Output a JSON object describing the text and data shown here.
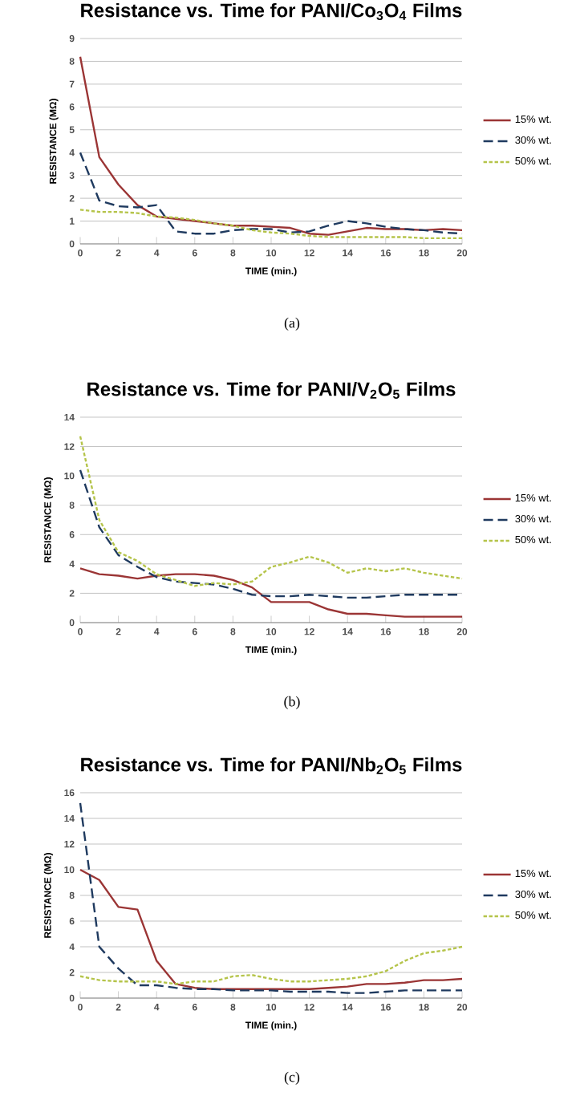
{
  "chart_data": [
    {
      "type": "line",
      "title": "Resistance vs. Time for PANI/Co$_{3}$O$_{4}$ Films",
      "xlabel": "TIME (min.)",
      "ylabel": "RESISTANCE (MΩ)",
      "x": [
        0,
        1,
        2,
        3,
        4,
        5,
        6,
        7,
        8,
        9,
        10,
        11,
        12,
        13,
        14,
        15,
        16,
        17,
        18,
        19,
        20
      ],
      "xlim": [
        0,
        20
      ],
      "xticks": [
        0,
        2,
        4,
        6,
        8,
        10,
        12,
        14,
        16,
        18,
        20
      ],
      "ylim": [
        0,
        9
      ],
      "yticks": [
        0,
        1,
        2,
        3,
        4,
        5,
        6,
        7,
        8,
        9
      ],
      "grid": "y",
      "legend": "right",
      "annotations": [
        "(a)"
      ],
      "series": [
        {
          "name": "15% wt.",
          "color": "#9b3535",
          "line_style": "solid",
          "values": [
            8.2,
            3.8,
            2.6,
            1.7,
            1.2,
            1.1,
            1.0,
            0.9,
            0.8,
            0.8,
            0.75,
            0.7,
            0.45,
            0.4,
            0.55,
            0.7,
            0.65,
            0.65,
            0.6,
            0.65,
            0.6
          ]
        },
        {
          "name": "30% wt.",
          "color": "#1f3a5f",
          "line_style": "dashed",
          "values": [
            4.0,
            1.9,
            1.65,
            1.6,
            1.7,
            0.55,
            0.45,
            0.45,
            0.6,
            0.65,
            0.65,
            0.5,
            0.55,
            0.8,
            1.0,
            0.9,
            0.75,
            0.65,
            0.6,
            0.5,
            0.45
          ]
        },
        {
          "name": "50% wt.",
          "color": "#b5c44a",
          "line_style": "dotted",
          "values": [
            1.5,
            1.4,
            1.4,
            1.35,
            1.2,
            1.15,
            1.05,
            0.9,
            0.8,
            0.6,
            0.5,
            0.45,
            0.35,
            0.3,
            0.3,
            0.3,
            0.3,
            0.3,
            0.25,
            0.25,
            0.25
          ]
        }
      ]
    },
    {
      "type": "line",
      "title": "Resistance vs. Time for PANI/V$_{2}$O$_{5}$ Films",
      "xlabel": "TIME (min.)",
      "ylabel": "RESISTANCE (MΩ)",
      "x": [
        0,
        1,
        2,
        3,
        4,
        5,
        6,
        7,
        8,
        9,
        10,
        11,
        12,
        13,
        14,
        15,
        16,
        17,
        18,
        19,
        20
      ],
      "xlim": [
        0,
        20
      ],
      "xticks": [
        0,
        2,
        4,
        6,
        8,
        10,
        12,
        14,
        16,
        18,
        20
      ],
      "ylim": [
        0,
        14
      ],
      "yticks": [
        0,
        2,
        4,
        6,
        8,
        10,
        12,
        14
      ],
      "grid": "y",
      "legend": "right",
      "annotations": [
        "(b)"
      ],
      "series": [
        {
          "name": "15% wt.",
          "color": "#9b3535",
          "line_style": "solid",
          "values": [
            3.7,
            3.3,
            3.2,
            3.0,
            3.2,
            3.3,
            3.3,
            3.2,
            2.9,
            2.4,
            1.4,
            1.4,
            1.4,
            0.9,
            0.6,
            0.6,
            0.5,
            0.4,
            0.4,
            0.4,
            0.4
          ]
        },
        {
          "name": "30% wt.",
          "color": "#1f3a5f",
          "line_style": "dashed",
          "values": [
            10.4,
            6.5,
            4.6,
            3.8,
            3.1,
            2.8,
            2.7,
            2.6,
            2.3,
            1.9,
            1.8,
            1.8,
            1.9,
            1.8,
            1.7,
            1.7,
            1.8,
            1.9,
            1.9,
            1.9,
            1.9
          ]
        },
        {
          "name": "50% wt.",
          "color": "#b5c44a",
          "line_style": "dotted",
          "values": [
            12.7,
            7.0,
            4.8,
            4.2,
            3.3,
            2.9,
            2.5,
            2.7,
            2.6,
            2.8,
            3.8,
            4.1,
            4.5,
            4.1,
            3.4,
            3.7,
            3.5,
            3.7,
            3.4,
            3.2,
            3.0
          ]
        }
      ]
    },
    {
      "type": "line",
      "title": "Resistance vs. Time for PANI/Nb$_{2}$O$_{5}$ Films",
      "xlabel": "TIME (min.)",
      "ylabel": "RESISTANCE (MΩ)",
      "x": [
        0,
        1,
        2,
        3,
        4,
        5,
        6,
        7,
        8,
        9,
        10,
        11,
        12,
        13,
        14,
        15,
        16,
        17,
        18,
        19,
        20
      ],
      "xlim": [
        0,
        20
      ],
      "xticks": [
        0,
        2,
        4,
        6,
        8,
        10,
        12,
        14,
        16,
        18,
        20
      ],
      "ylim": [
        0,
        16
      ],
      "yticks": [
        0,
        2,
        4,
        6,
        8,
        10,
        12,
        14,
        16
      ],
      "grid": "y",
      "legend": "right",
      "annotations": [
        "(c)"
      ],
      "series": [
        {
          "name": "15% wt.",
          "color": "#9b3535",
          "line_style": "solid",
          "values": [
            10,
            9.2,
            7.1,
            6.9,
            2.9,
            1.1,
            0.8,
            0.7,
            0.7,
            0.7,
            0.7,
            0.7,
            0.7,
            0.8,
            0.9,
            1.1,
            1.1,
            1.2,
            1.4,
            1.4,
            1.5
          ]
        },
        {
          "name": "30% wt.",
          "color": "#1f3a5f",
          "line_style": "dashed",
          "values": [
            15.2,
            4.0,
            2.3,
            1.0,
            1.0,
            0.8,
            0.7,
            0.7,
            0.6,
            0.6,
            0.6,
            0.5,
            0.5,
            0.5,
            0.4,
            0.4,
            0.5,
            0.6,
            0.6,
            0.6,
            0.6
          ]
        },
        {
          "name": "50% wt.",
          "color": "#b5c44a",
          "line_style": "dotted",
          "values": [
            1.7,
            1.4,
            1.3,
            1.3,
            1.3,
            1.1,
            1.3,
            1.3,
            1.7,
            1.8,
            1.5,
            1.3,
            1.3,
            1.4,
            1.5,
            1.7,
            2.1,
            2.9,
            3.5,
            3.7,
            4.0
          ]
        }
      ]
    }
  ]
}
